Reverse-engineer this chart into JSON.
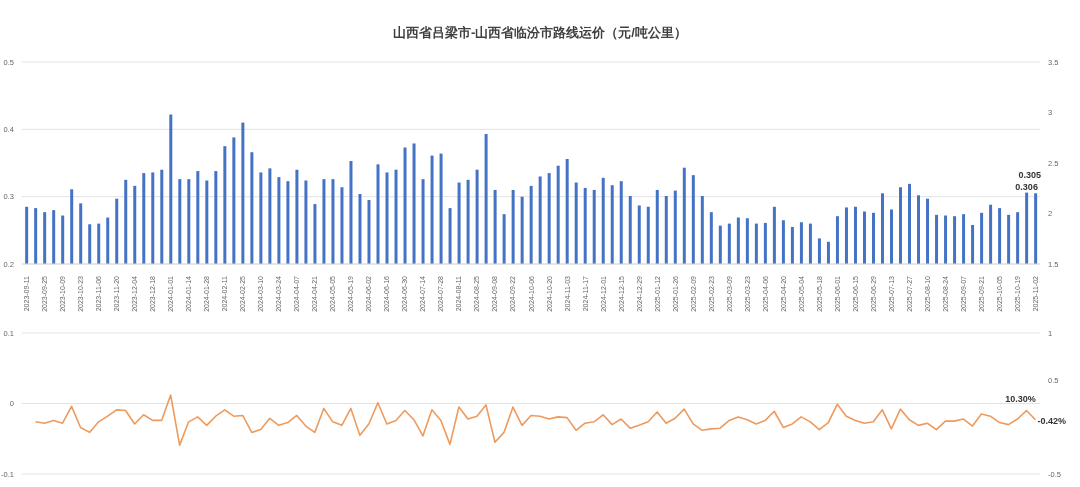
{
  "chart_data": [
    {
      "type": "bar",
      "title": "山西省吕梁市-山西省临汾市路线运价（元/吨公里）",
      "categories": [
        "2023-09-11",
        null,
        "2023-09-25",
        null,
        "2023-10-09",
        null,
        "2023-10-23",
        null,
        "2023-11-06",
        null,
        "2023-11-20",
        null,
        "2023-12-04",
        null,
        "2023-12-18",
        null,
        "2024-01-01",
        null,
        "2024-01-14",
        null,
        "2024-01-28",
        null,
        "2024-02-11",
        null,
        "2024-02-25",
        null,
        "2024-03-10",
        null,
        "2024-03-24",
        null,
        "2024-04-07",
        null,
        "2024-04-21",
        null,
        "2024-05-05",
        null,
        "2024-05-19",
        null,
        "2024-06-02",
        null,
        "2024-06-16",
        null,
        "2024-06-30",
        null,
        "2024-07-14",
        null,
        "2024-07-28",
        null,
        "2024-08-11",
        null,
        "2024-08-25",
        null,
        "2024-09-08",
        null,
        "2024-09-22",
        null,
        "2024-10-06",
        null,
        "2024-10-20",
        null,
        "2024-11-03",
        null,
        "2024-11-17",
        null,
        "2024-12-01",
        null,
        "2024-12-15",
        null,
        "2024-12-29",
        null,
        "2025-01-12",
        null,
        "2025-01-26",
        null,
        "2025-02-09",
        null,
        "2025-02-23",
        null,
        "2025-03-09",
        null,
        "2025-03-23",
        null,
        "2025-04-06",
        null,
        "2025-04-20",
        null,
        "2025-05-04",
        null,
        "2025-05-18",
        null,
        "2025-06-01",
        null,
        "2025-06-15",
        null,
        "2025-06-29",
        null,
        "2025-07-13",
        null,
        "2025-07-27",
        null,
        "2025-08-10",
        null,
        "2025-08-24",
        null,
        "2025-09-07",
        null,
        "2025-09-21",
        null,
        "2025-10-05",
        null,
        "2025-10-19",
        null,
        "2025-11-02"
      ],
      "series": [
        {
          "color": "#4472c4",
          "values": [
            0.285,
            0.283,
            0.277,
            0.28,
            0.272,
            0.311,
            0.29,
            0.259,
            0.26,
            0.269,
            0.297,
            0.325,
            0.316,
            0.335,
            0.336,
            0.34,
            0.422,
            0.326,
            0.326,
            0.338,
            0.324,
            0.338,
            0.375,
            0.388,
            0.41,
            0.366,
            0.336,
            0.342,
            0.329,
            0.323,
            0.34,
            0.324,
            0.289,
            0.326,
            0.326,
            0.314,
            0.353,
            0.304,
            0.295,
            0.348,
            0.336,
            0.34,
            0.373,
            0.379,
            0.326,
            0.361,
            0.364,
            0.283,
            0.321,
            0.325,
            0.34,
            0.393,
            0.31,
            0.274,
            0.31,
            0.3,
            0.316,
            0.33,
            0.335,
            0.346,
            0.356,
            0.321,
            0.313,
            0.31,
            0.328,
            0.317,
            0.323,
            0.301,
            0.287,
            0.285,
            0.31,
            0.301,
            0.309,
            0.343,
            0.332,
            0.301,
            0.277,
            0.257,
            0.26,
            0.269,
            0.268,
            0.26,
            0.261,
            0.285,
            0.265,
            0.255,
            0.262,
            0.26,
            0.238,
            0.233,
            0.271,
            0.284,
            0.285,
            0.278,
            0.276,
            0.305,
            0.281,
            0.314,
            0.319,
            0.302,
            0.297,
            0.273,
            0.272,
            0.271,
            0.274,
            0.258,
            0.276,
            0.288,
            0.283,
            0.273,
            0.277,
            0.306,
            0.305
          ],
          "value_labels": [
            null,
            null,
            null,
            null,
            null,
            null,
            null,
            null,
            null,
            null,
            null,
            null,
            null,
            null,
            null,
            null,
            null,
            null,
            null,
            null,
            null,
            null,
            null,
            null,
            null,
            null,
            null,
            null,
            null,
            null,
            null,
            null,
            null,
            null,
            null,
            null,
            null,
            null,
            null,
            null,
            null,
            null,
            null,
            null,
            null,
            null,
            null,
            null,
            null,
            null,
            null,
            null,
            null,
            null,
            null,
            null,
            null,
            null,
            null,
            null,
            null,
            null,
            null,
            null,
            null,
            null,
            null,
            null,
            null,
            null,
            null,
            null,
            null,
            null,
            null,
            null,
            null,
            null,
            null,
            null,
            null,
            null,
            null,
            null,
            null,
            null,
            null,
            null,
            null,
            null,
            null,
            null,
            null,
            null,
            null,
            null,
            null,
            null,
            null,
            null,
            null,
            null,
            null,
            null,
            null,
            null,
            null,
            null,
            null,
            null,
            null,
            "0.306",
            "0.305"
          ]
        }
      ],
      "ylim": [
        0.2,
        0.5
      ],
      "yticks": [
        0.2,
        0.3,
        0.4,
        0.5
      ],
      "y2lim": [
        1.5,
        3.5
      ],
      "y2ticks": [
        1.5,
        2,
        2.5,
        3,
        3.5
      ],
      "grid": "y"
    },
    {
      "type": "line",
      "categories": [
        "2023-09-11",
        null,
        "2023-09-25",
        null,
        "2023-10-09",
        null,
        "2023-10-23",
        null,
        "2023-11-06",
        null,
        "2023-11-20",
        null,
        "2023-12-04",
        null,
        "2023-12-18",
        null,
        "2024-01-01",
        null,
        "2024-01-14",
        null,
        "2024-01-28",
        null,
        "2024-02-11",
        null,
        "2024-02-25",
        null,
        "2024-03-10",
        null,
        "2024-03-24",
        null,
        "2024-04-07",
        null,
        "2024-04-21",
        null,
        "2024-05-05",
        null,
        "2024-05-19",
        null,
        "2024-06-02",
        null,
        "2024-06-16",
        null,
        "2024-06-30",
        null,
        "2024-07-14",
        null,
        "2024-07-28",
        null,
        "2024-08-11",
        null,
        "2024-08-25",
        null,
        "2024-09-08",
        null,
        "2024-09-22",
        null,
        "2024-10-06",
        null,
        "2024-10-20",
        null,
        "2024-11-03",
        null,
        "2024-11-17",
        null,
        "2024-12-01",
        null,
        "2024-12-15",
        null,
        "2024-12-29",
        null,
        "2025-01-12",
        null,
        "2025-01-26",
        null,
        "2025-02-09",
        null,
        "2025-02-23",
        null,
        "2025-03-09",
        null,
        "2025-03-23",
        null,
        "2025-04-06",
        null,
        "2025-04-20",
        null,
        "2025-05-04",
        null,
        "2025-05-18",
        null,
        "2025-06-01",
        null,
        "2025-06-15",
        null,
        "2025-06-29",
        null,
        "2025-07-13",
        null,
        "2025-07-27",
        null,
        "2025-08-10",
        null,
        "2025-08-24",
        null,
        "2025-09-07",
        null,
        "2025-09-21",
        null,
        "2025-10-05",
        null,
        "2025-10-19",
        null,
        "2025-11-02"
      ],
      "series": [
        {
          "color": "#ed9a5c",
          "values": [
            null,
            -0.026,
            -0.028,
            -0.024,
            -0.028,
            -0.004,
            -0.034,
            -0.041,
            -0.026,
            -0.018,
            -0.009,
            -0.01,
            -0.029,
            -0.016,
            -0.024,
            -0.024,
            0.012,
            -0.059,
            -0.026,
            -0.019,
            -0.031,
            -0.018,
            -0.009,
            -0.018,
            -0.017,
            -0.041,
            -0.037,
            -0.021,
            -0.031,
            -0.027,
            -0.017,
            -0.032,
            -0.041,
            -0.007,
            -0.026,
            -0.031,
            -0.007,
            -0.045,
            -0.029,
            0.001,
            -0.029,
            -0.024,
            -0.01,
            -0.023,
            -0.046,
            -0.009,
            -0.024,
            -0.058,
            -0.005,
            -0.022,
            -0.018,
            -0.002,
            -0.055,
            -0.041,
            -0.005,
            -0.031,
            -0.017,
            -0.018,
            -0.022,
            -0.019,
            -0.02,
            -0.038,
            -0.028,
            -0.026,
            -0.016,
            -0.03,
            -0.022,
            -0.035,
            -0.031,
            -0.026,
            -0.012,
            -0.028,
            -0.021,
            -0.008,
            -0.029,
            -0.038,
            -0.036,
            -0.035,
            -0.024,
            -0.019,
            -0.023,
            -0.029,
            -0.024,
            -0.011,
            -0.034,
            -0.029,
            -0.019,
            -0.026,
            -0.037,
            -0.027,
            -0.001,
            -0.018,
            -0.024,
            -0.028,
            -0.026,
            -0.009,
            -0.036,
            -0.008,
            -0.023,
            -0.031,
            -0.028,
            -0.037,
            -0.025,
            -0.025,
            -0.022,
            -0.032,
            -0.015,
            -0.018,
            -0.027,
            -0.03,
            -0.022,
            -0.01,
            -0.023
          ]
        }
      ],
      "annotations": [
        "10.30%",
        "-0.42%"
      ],
      "ylim": [
        -0.1,
        0.1
      ],
      "yticks": [
        -0.1,
        0,
        0.1
      ],
      "y2lim": [
        -0.5,
        1
      ],
      "y2ticks": [
        -0.5,
        0.5,
        1
      ],
      "grid": "y",
      "tick_labels": "y",
      "marker": "none",
      "line_style": "solid"
    }
  ]
}
